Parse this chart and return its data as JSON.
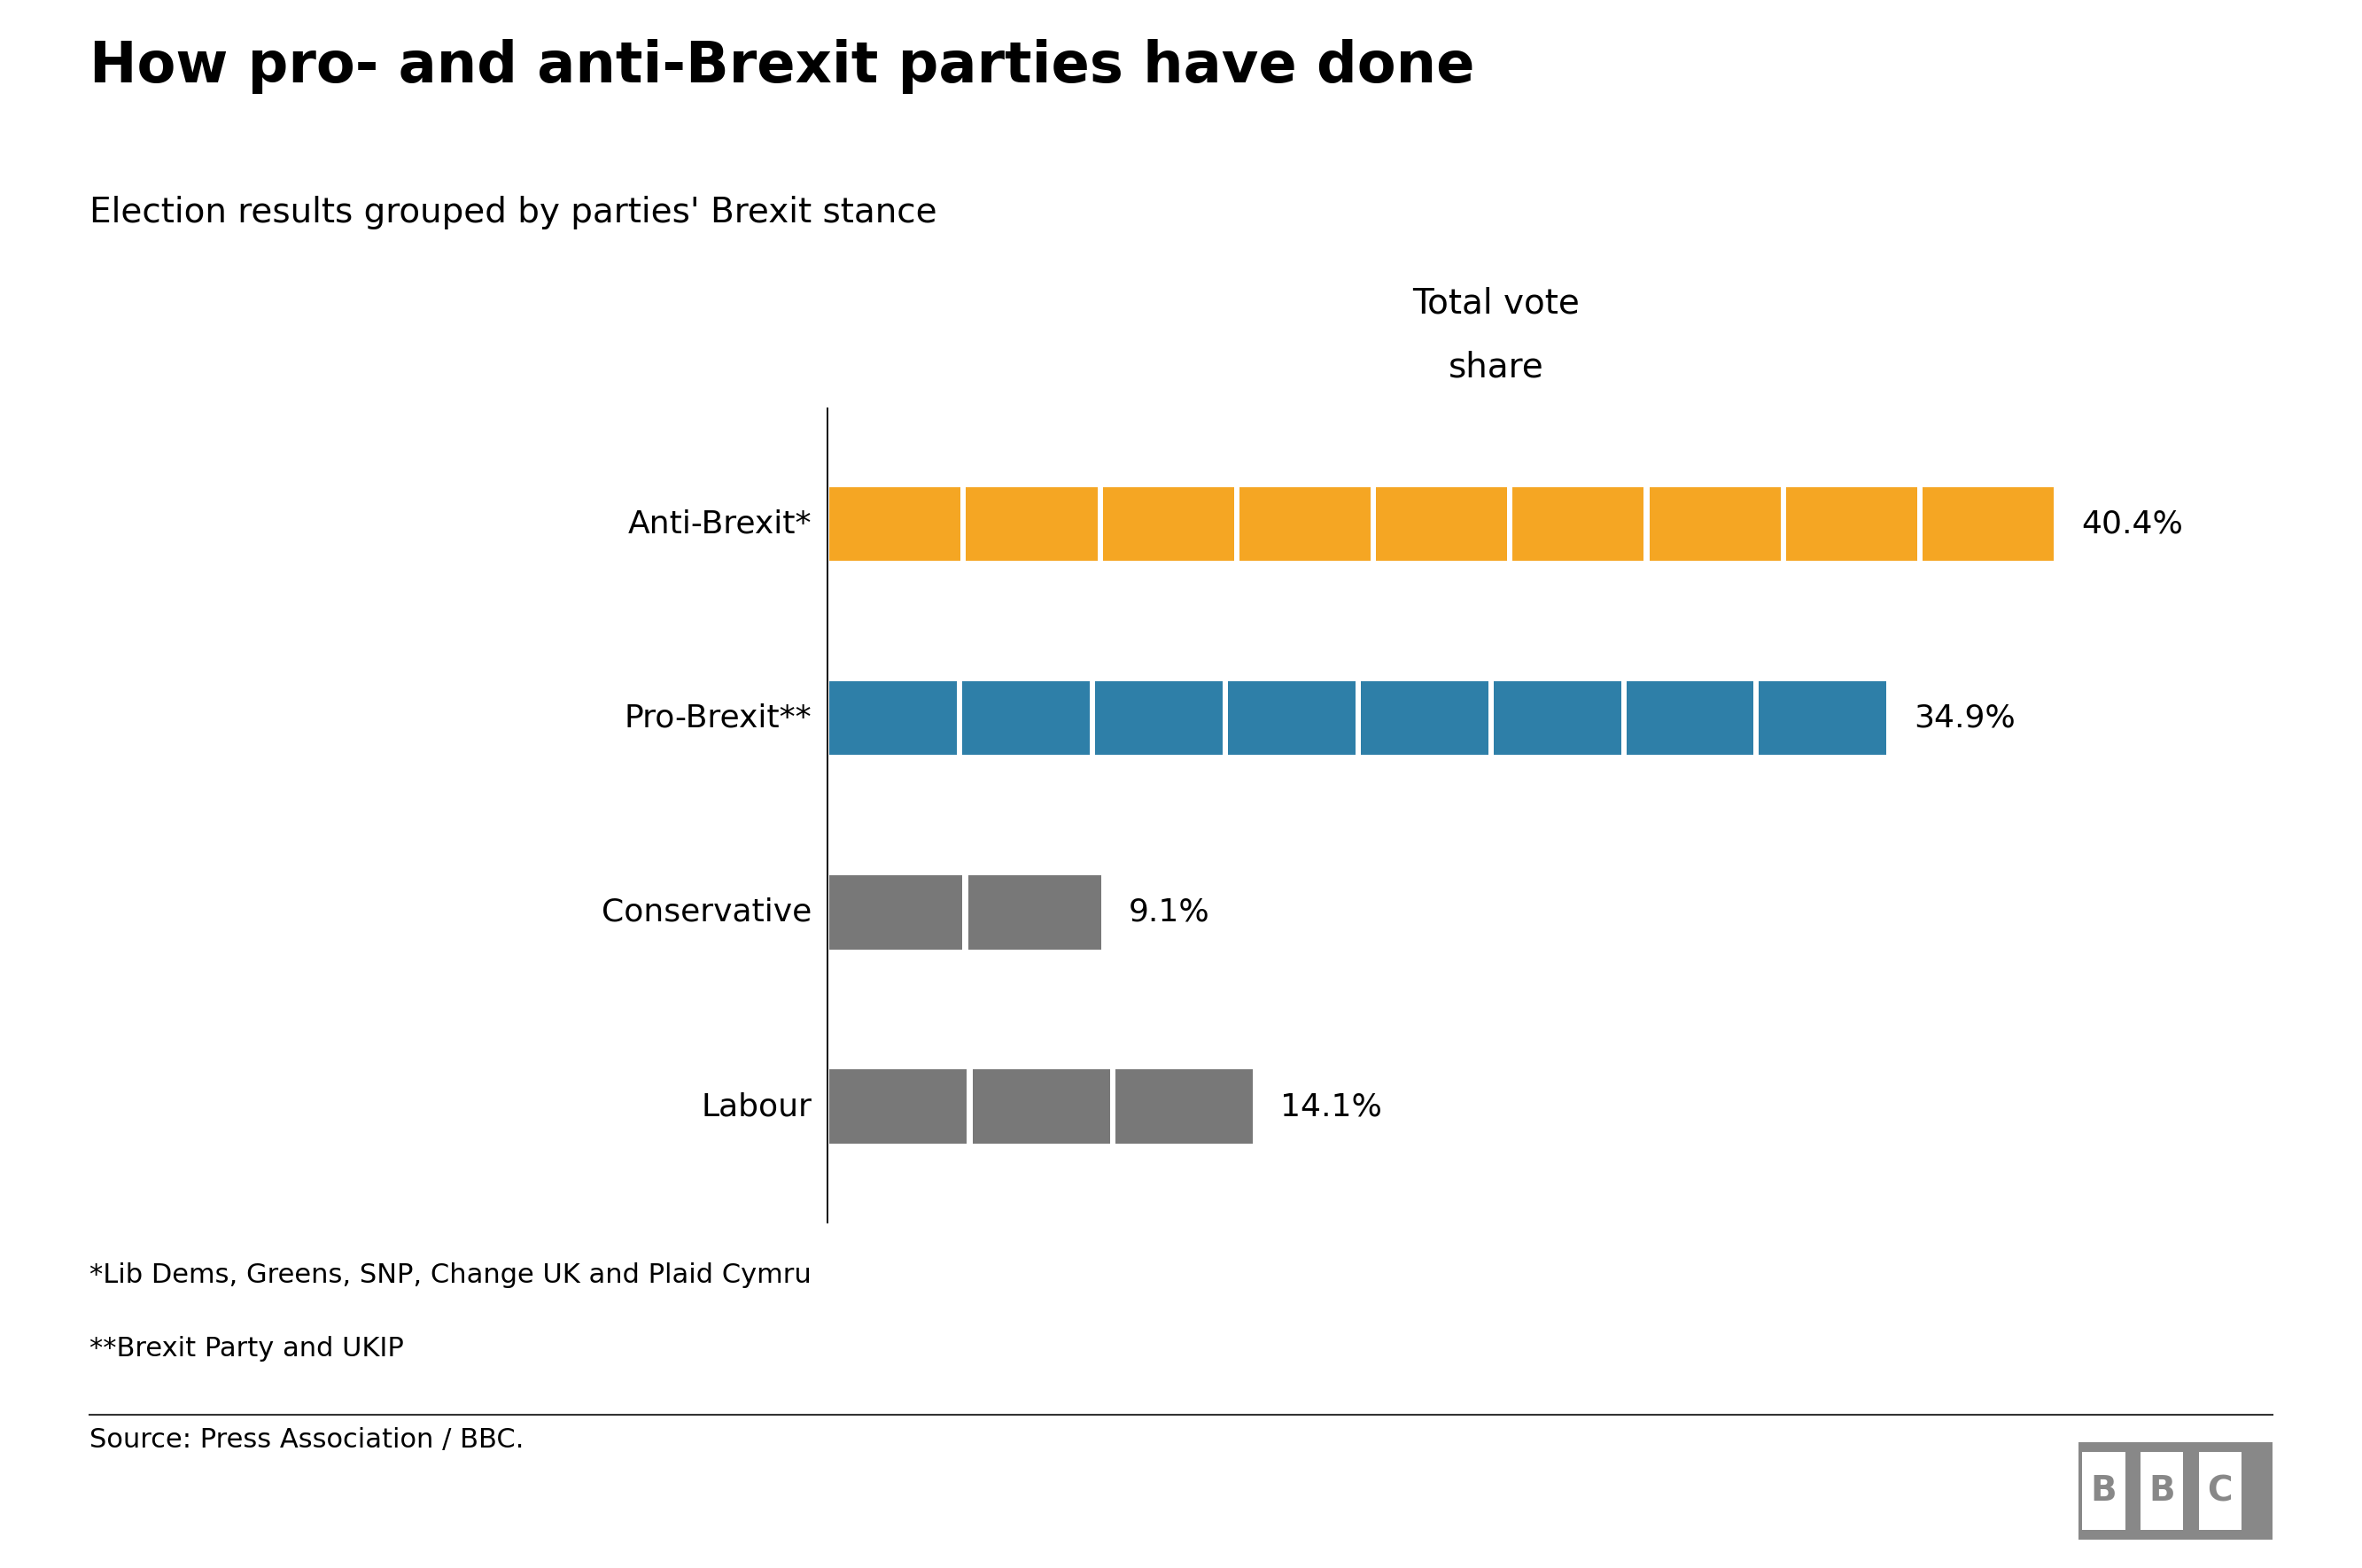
{
  "title": "How pro- and anti-Brexit parties have done",
  "subtitle": "Election results grouped by parties' Brexit stance",
  "xlabel_line1": "Total vote",
  "xlabel_line2": "share",
  "categories": [
    "Anti-Brexit*",
    "Pro-Brexit**",
    "Conservative",
    "Labour"
  ],
  "values": [
    40.4,
    34.9,
    9.1,
    14.1
  ],
  "colors": [
    "#F5A623",
    "#2E7FA8",
    "#787878",
    "#787878"
  ],
  "label_texts": [
    "40.4%",
    "34.9%",
    "9.1%",
    "14.1%"
  ],
  "num_segments": [
    9,
    8,
    2,
    3
  ],
  "footnote1": "*Lib Dems, Greens, SNP, Change UK and Plaid Cymru",
  "footnote2": "**Brexit Party and UKIP",
  "source": "Source: Press Association / BBC.",
  "bbc_text": "BBC",
  "background_color": "#FFFFFF",
  "title_fontsize": 46,
  "subtitle_fontsize": 28,
  "xlabel_fontsize": 28,
  "label_fontsize": 26,
  "category_fontsize": 26,
  "footnote_fontsize": 22,
  "source_fontsize": 22,
  "bbc_fontsize": 28
}
